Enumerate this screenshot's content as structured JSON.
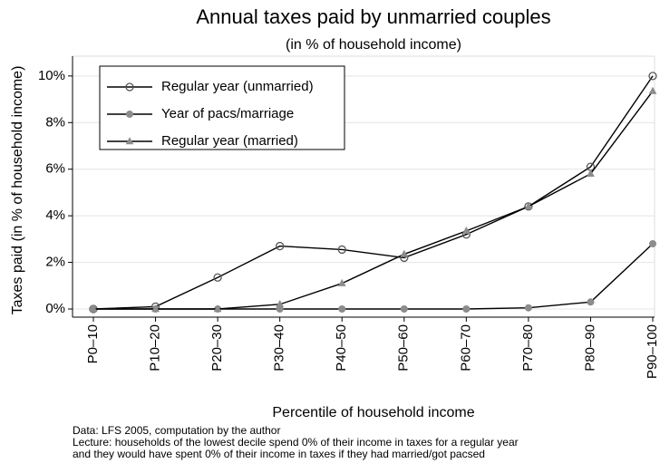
{
  "chart_data": {
    "type": "line",
    "title": "Annual taxes paid by unmarried couples",
    "subtitle": "(in % of household income)",
    "x_label": "Percentile of household income",
    "y_label": "Taxes paid (in % of household income)",
    "notes": [
      "Data: LFS 2005, computation by the author",
      "Lecture: households of the lowest decile spend 0% of their income in taxes for a regular year",
      "and they would have spent 0% of their income in taxes if they had married/got pacsed"
    ],
    "categories": [
      "P0–10",
      "P10–20",
      "P20–30",
      "P30–40",
      "P40–50",
      "P50–60",
      "P60–70",
      "P70–80",
      "P80–90",
      "P90–100"
    ],
    "series": [
      {
        "name": "Regular year (unmarried)",
        "color": "#000000",
        "marker": "hollow-circle",
        "marker_color": "#555555",
        "values": [
          0,
          0.1,
          1.35,
          2.7,
          2.55,
          2.2,
          3.2,
          4.4,
          6.1,
          10.0
        ]
      },
      {
        "name": "Year of pacs/marriage",
        "color": "#000000",
        "marker": "circle",
        "marker_color": "#8c8c8c",
        "values": [
          0,
          0,
          0,
          0,
          0,
          0,
          0,
          0.05,
          0.3,
          2.8
        ]
      },
      {
        "name": "Regular year (married)",
        "color": "#000000",
        "marker": "triangle",
        "marker_color": "#8c8c8c",
        "values": [
          0,
          0,
          0,
          0.2,
          1.1,
          2.35,
          3.35,
          4.4,
          5.8,
          9.35
        ]
      }
    ],
    "ylim": [
      -0.35,
      10.85
    ],
    "yticks": [
      {
        "value": 0,
        "label": "0%"
      },
      {
        "value": 2,
        "label": "2%"
      },
      {
        "value": 4,
        "label": "4%"
      },
      {
        "value": 6,
        "label": "6%"
      },
      {
        "value": 8,
        "label": "8%"
      },
      {
        "value": 10,
        "label": "10%"
      }
    ],
    "grid": true,
    "legend": "top-left"
  }
}
